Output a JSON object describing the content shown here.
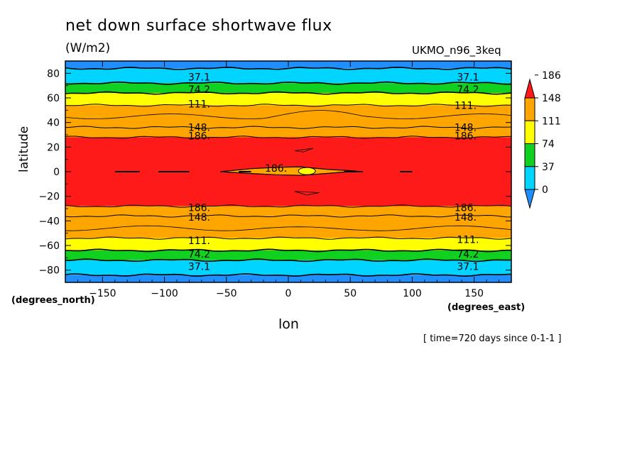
{
  "chart_data": {
    "type": "heatmap",
    "title": "net down surface shortwave flux",
    "units": "(W/m2)",
    "model_label": "UKMO_n96_3keq",
    "xlabel": "lon",
    "ylabel": "latitude",
    "x_units_label": "(degrees_east)",
    "y_units_label": "(degrees_north)",
    "time_label": "[ time=720 days since 0-1-1 ]",
    "xlim": [
      -180,
      180
    ],
    "ylim": [
      -90,
      90
    ],
    "x_ticks": [
      -150,
      -100,
      -50,
      0,
      50,
      100,
      150
    ],
    "x_tick_labels": [
      "−150",
      "−100",
      "−50",
      "0",
      "50",
      "100",
      "150"
    ],
    "y_ticks": [
      -80,
      -60,
      -40,
      -20,
      0,
      20,
      40,
      60,
      80
    ],
    "y_tick_labels": [
      "−80",
      "−60",
      "−40",
      "−20",
      "0",
      "20",
      "40",
      "60",
      "80"
    ],
    "colorbar": {
      "levels": [
        0,
        37,
        74,
        111,
        148,
        186
      ],
      "labels": [
        "0",
        "37",
        "74",
        "111",
        "148",
        "186"
      ],
      "colors": [
        "#1f8fff",
        "#00d4ff",
        "#10d020",
        "#ffff00",
        "#ffa500",
        "#ff1a1a"
      ]
    },
    "lat_bands": [
      {
        "lat_from": 84,
        "lat_to": 90,
        "value": 0
      },
      {
        "lat_from": 72,
        "lat_to": 84,
        "value": 37
      },
      {
        "lat_from": 64,
        "lat_to": 72,
        "value": 74
      },
      {
        "lat_from": 54,
        "lat_to": 64,
        "value": 111
      },
      {
        "lat_from": 36,
        "lat_to": 54,
        "value": 148
      },
      {
        "lat_from": 28,
        "lat_to": 36,
        "value": 170
      },
      {
        "lat_from": -28,
        "lat_to": 28,
        "value": 190
      },
      {
        "lat_from": -36,
        "lat_to": -28,
        "value": 170
      },
      {
        "lat_from": -54,
        "lat_to": -36,
        "value": 148
      },
      {
        "lat_from": -64,
        "lat_to": -54,
        "value": 111
      },
      {
        "lat_from": -72,
        "lat_to": -64,
        "value": 74
      },
      {
        "lat_from": -84,
        "lat_to": -72,
        "value": 37
      },
      {
        "lat_from": -90,
        "lat_to": -84,
        "value": 0
      }
    ],
    "contour_labels": [
      {
        "text": "37.1",
        "lon": -72,
        "lat": 77
      },
      {
        "text": "37.1",
        "lon": 145,
        "lat": 77
      },
      {
        "text": "74.2",
        "lon": -72,
        "lat": 67
      },
      {
        "text": "74.2",
        "lon": 145,
        "lat": 67
      },
      {
        "text": "111.",
        "lon": -72,
        "lat": 55
      },
      {
        "text": "111.",
        "lon": 143,
        "lat": 54
      },
      {
        "text": "148.",
        "lon": -72,
        "lat": 36
      },
      {
        "text": "148.",
        "lon": 143,
        "lat": 36
      },
      {
        "text": "186.",
        "lon": -72,
        "lat": 29
      },
      {
        "text": "186.",
        "lon": 143,
        "lat": 29
      },
      {
        "text": "186.",
        "lon": -10,
        "lat": 3
      },
      {
        "text": "186.",
        "lon": -72,
        "lat": -29
      },
      {
        "text": "186.",
        "lon": 143,
        "lat": -29
      },
      {
        "text": "148.",
        "lon": -72,
        "lat": -37
      },
      {
        "text": "148.",
        "lon": 143,
        "lat": -37
      },
      {
        "text": "111.",
        "lon": -72,
        "lat": -56
      },
      {
        "text": "111.",
        "lon": 145,
        "lat": -55
      },
      {
        "text": "74.2",
        "lon": -72,
        "lat": -67
      },
      {
        "text": "74.2",
        "lon": 145,
        "lat": -67
      },
      {
        "text": "37.1",
        "lon": -72,
        "lat": -77
      },
      {
        "text": "37.1",
        "lon": 145,
        "lat": -77
      }
    ]
  }
}
